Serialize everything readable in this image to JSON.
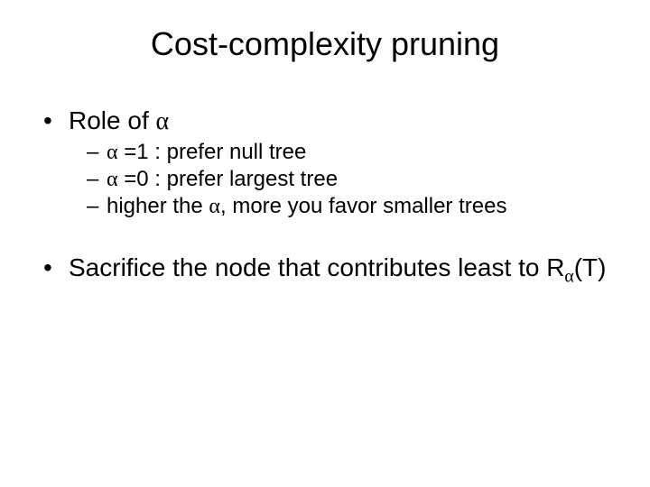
{
  "slide": {
    "title": "Cost-complexity pruning",
    "alpha": "α",
    "bullets": {
      "b1_prefix": "Role of ",
      "sub1_prefix": " =1 : prefer null tree",
      "sub2_prefix": " =0 : prefer largest tree",
      "sub3_a": "higher the ",
      "sub3_b": ", more you favor smaller trees",
      "b2_a": "Sacrifice the node that contributes least to R",
      "b2_b": "(T)"
    }
  },
  "style": {
    "background": "#ffffff",
    "text_color": "#000000",
    "title_fontsize": 36,
    "l1_fontsize": 28,
    "l2_fontsize": 24,
    "font_family": "Arial"
  }
}
